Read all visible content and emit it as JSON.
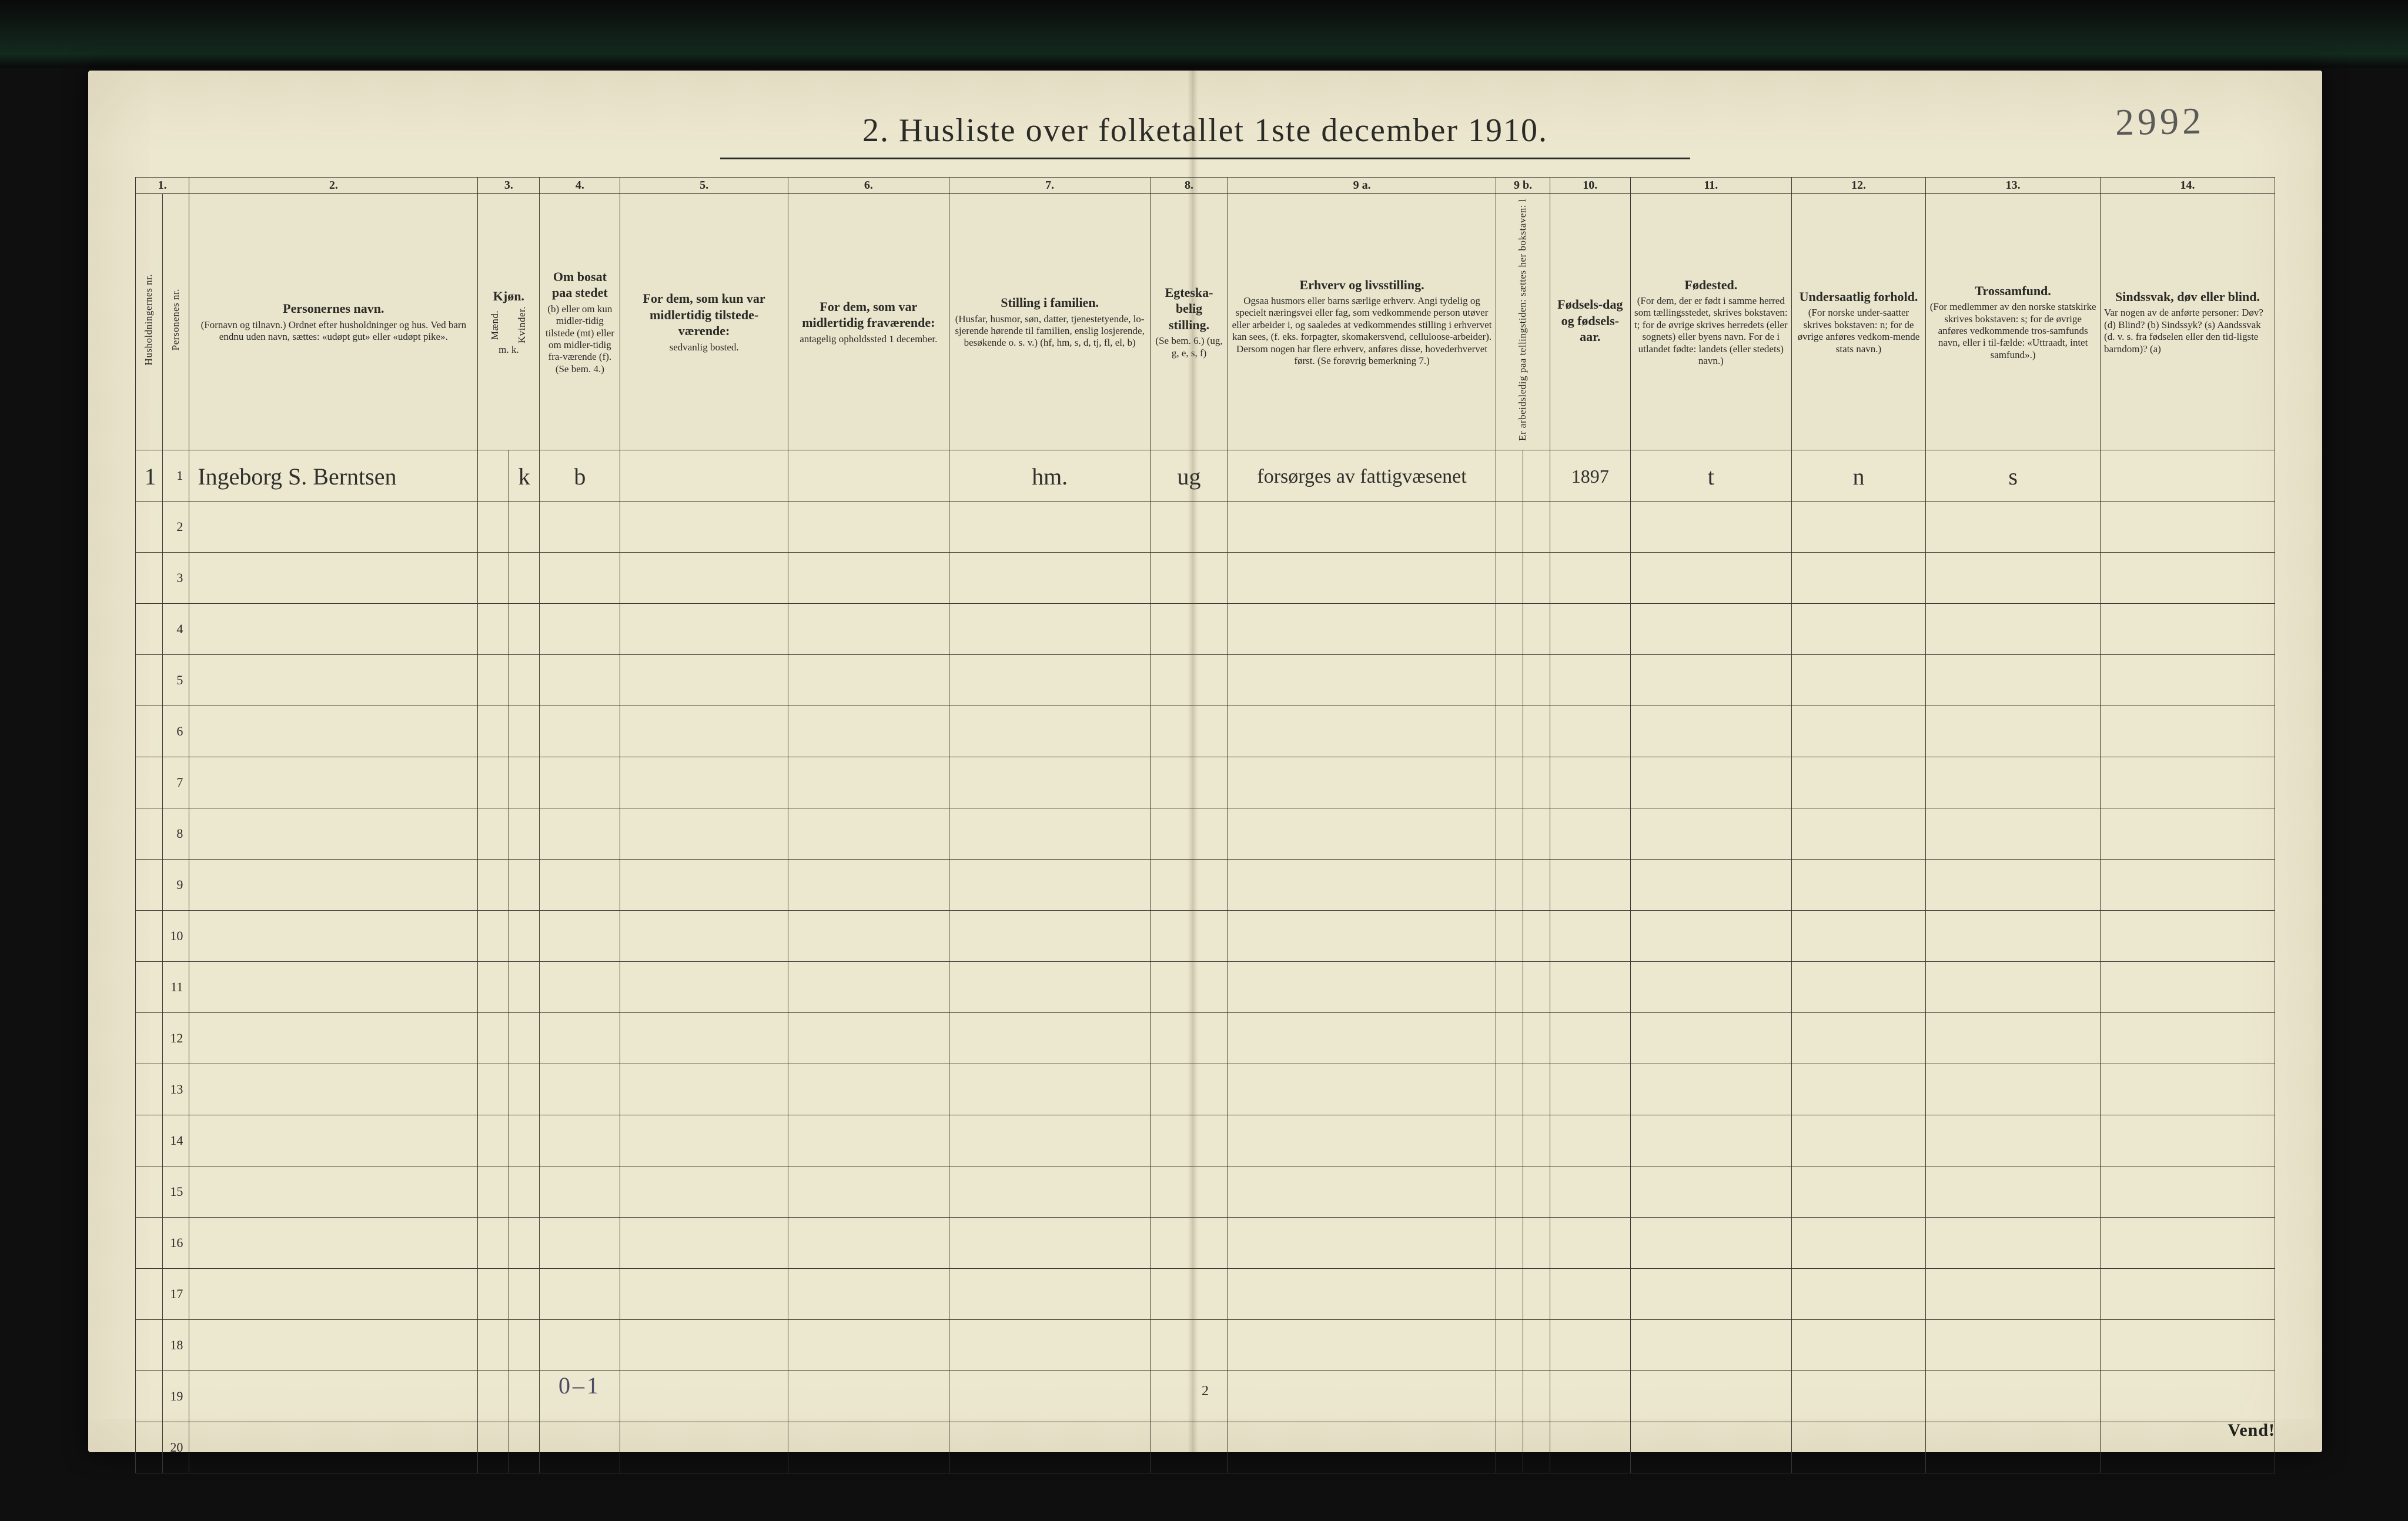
{
  "annotation_topright": "2992",
  "title": "2.  Husliste over folketallet 1ste december 1910.",
  "page_number_bottom": "2",
  "bottom_hand_note": "0–1",
  "vend_label": "Vend!",
  "colnums": [
    "1.",
    "2.",
    "3.",
    "4.",
    "5.",
    "6.",
    "7.",
    "8.",
    "9 a.",
    "9 b.",
    "10.",
    "11.",
    "12.",
    "13.",
    "14."
  ],
  "headers": {
    "c1a": "Husholdningernes nr.",
    "c1b": "Personenes nr.",
    "c2_title": "Personernes navn.",
    "c2_sub": "(Fornavn og tilnavn.)\nOrdnet efter husholdninger og hus.\nVed barn endnu uden navn, sættes: «udøpt gut» eller «udøpt pike».",
    "c3_title": "Kjøn.",
    "c3_m": "Mænd.",
    "c3_k": "Kvinder.",
    "c3_mk": "m.  k.",
    "c4_title": "Om bosat paa stedet",
    "c4_sub": "(b) eller om kun midler-tidig tilstede (mt) eller om midler-tidig fra-værende (f).\n(Se bem. 4.)",
    "c5_title": "For dem, som kun var midlertidig tilstede-værende:",
    "c5_sub": "sedvanlig bosted.",
    "c6_title": "For dem, som var midlertidig fraværende:",
    "c6_sub": "antagelig opholdssted 1 december.",
    "c7_title": "Stilling i familien.",
    "c7_sub": "(Husfar, husmor, søn, datter, tjenestetyende, lo-sjerende hørende til familien, enslig losjerende, besøkende o. s. v.)\n(hf, hm, s, d, tj, fl, el, b)",
    "c8_title": "Egteska-belig stilling.",
    "c8_sub": "(Se bem. 6.)\n(ug, g, e, s, f)",
    "c9a_title": "Erhverv og livsstilling.",
    "c9a_sub": "Ogsaa husmors eller barns særlige erhverv.\nAngi tydelig og specielt næringsvei eller fag, som vedkommende person utøver eller arbeider i, og saaledes at vedkommendes stilling i erhvervet kan sees, (f. eks. forpagter, skomakersvend, celluloose-arbeider). Dersom nogen har flere erhverv, anføres disse, hovederhvervet først.\n(Se forøvrig bemerkning 7.)",
    "c9b_a": "Er arbeidsledig paa tellingstiden: sættes her bokstaven: l",
    "c10_title": "Fødsels-dag og fødsels-aar.",
    "c11_title": "Fødested.",
    "c11_sub": "(For dem, der er født i samme herred som tællingsstedet, skrives bokstaven: t; for de øvrige skrives herredets (eller sognets) eller byens navn.\nFor de i utlandet fødte: landets (eller stedets) navn.)",
    "c12_title": "Undersaatlig forhold.",
    "c12_sub": "(For norske under-saatter skrives bokstaven: n; for de øvrige anføres vedkom-mende stats navn.)",
    "c13_title": "Trossamfund.",
    "c13_sub": "(For medlemmer av den norske statskirke skrives bokstaven: s; for de øvrige anføres vedkommende tros-samfunds navn, eller i til-fælde: «Uttraadt, intet samfund».)",
    "c14_title": "Sindssvak, døv eller blind.",
    "c14_sub": "Var nogen av de anførte personer:\nDøv?        (d)\nBlind?      (b)\nSindssyk?  (s)\nAandssvak (d. v. s. fra fødselen eller den tid-ligste barndom)? (a)"
  },
  "row1": {
    "hh": "1",
    "pn": "1",
    "name": "Ingeborg S. Berntsen",
    "sex_k": "k",
    "bosat": "b",
    "stilling_fam": "hm.",
    "egtesk": "ug",
    "erhverv": "forsørges av fattigvæsenet",
    "fodselsaar": "1897",
    "fodested": "t",
    "undersaat": "n",
    "tros": "s"
  },
  "blank_row_numbers": [
    "2",
    "3",
    "4",
    "5",
    "6",
    "7",
    "8",
    "9",
    "10",
    "11",
    "12",
    "13",
    "14",
    "15",
    "16",
    "17",
    "18",
    "19",
    "20"
  ]
}
